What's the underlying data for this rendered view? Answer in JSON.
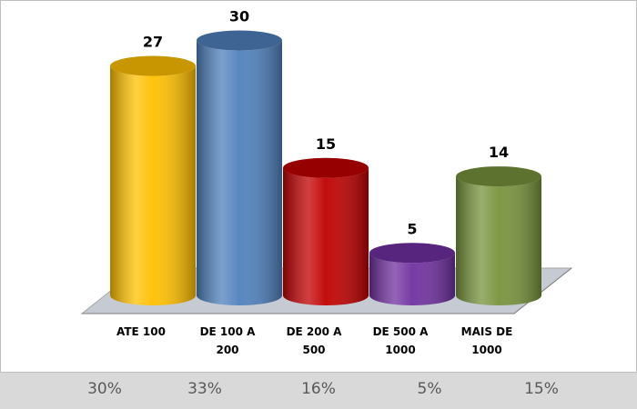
{
  "chart_data": {
    "type": "bar",
    "categories": [
      "ATE 100",
      "DE 100 A\n200",
      "DE 200 A\n500",
      "DE 500 A\n1000",
      "MAIS DE\n1000"
    ],
    "values": [
      27,
      30,
      15,
      5,
      14
    ],
    "colors": [
      "#ffc000",
      "#4f81bd",
      "#c00000",
      "#7030a0",
      "#77933c"
    ],
    "percentages": [
      "30%",
      "33%",
      "16%",
      "5%",
      "15%"
    ]
  }
}
